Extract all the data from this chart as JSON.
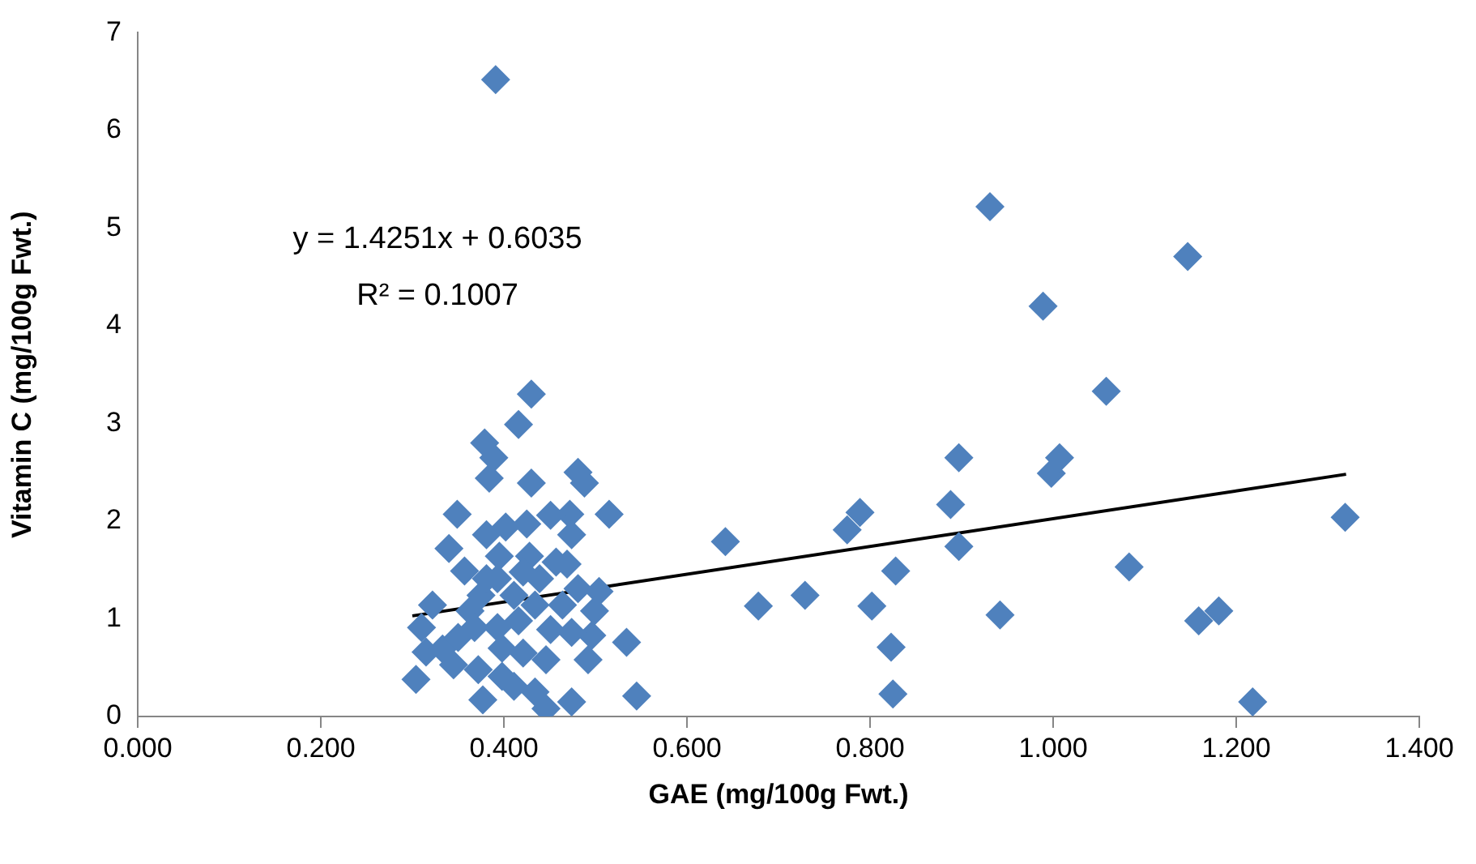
{
  "chart_data": {
    "type": "scatter",
    "xlabel": "GAE (mg/100g Fwt.)",
    "ylabel": "Vitamin C (mg/100g Fwt.)",
    "xlim": [
      0,
      1.4
    ],
    "ylim": [
      0,
      7
    ],
    "xticks": [
      {
        "value": 0,
        "label": "0.000"
      },
      {
        "value": 0.2,
        "label": "0.200"
      },
      {
        "value": 0.4,
        "label": "0.400"
      },
      {
        "value": 0.6,
        "label": "0.600"
      },
      {
        "value": 0.8,
        "label": "0.800"
      },
      {
        "value": 1.0,
        "label": "1.000"
      },
      {
        "value": 1.2,
        "label": "1.200"
      },
      {
        "value": 1.4,
        "label": "1.400"
      }
    ],
    "yticks": [
      0,
      1,
      2,
      3,
      4,
      5,
      6,
      7
    ],
    "grid": false,
    "legend": false,
    "annotations": [
      "y = 1.4251x + 0.6035",
      "R² = 0.1007"
    ],
    "series": [
      {
        "color": "#4f81bd",
        "marker": "diamond",
        "x": [
          0.391,
          0.642,
          0.678,
          0.729,
          0.775,
          0.789,
          0.802,
          0.828,
          0.823,
          0.825,
          0.888,
          0.897,
          0.897,
          0.931,
          0.942,
          0.989,
          0.998,
          1.007,
          1.058,
          1.083,
          1.147,
          1.159,
          1.181,
          1.218,
          1.319,
          0.43,
          0.416,
          0.379,
          0.389,
          0.481,
          0.488,
          0.43,
          0.384,
          0.349,
          0.515,
          0.472,
          0.451,
          0.474,
          0.34,
          0.381,
          0.402,
          0.425,
          0.357,
          0.469,
          0.428,
          0.395,
          0.322,
          0.504,
          0.534,
          0.545,
          0.304,
          0.315,
          0.333,
          0.377,
          0.446,
          0.474,
          0.492,
          0.496,
          0.31,
          0.372,
          0.411,
          0.434,
          0.451,
          0.393,
          0.421,
          0.464,
          0.411,
          0.375,
          0.439,
          0.481,
          0.363,
          0.398,
          0.35,
          0.434,
          0.393,
          0.368,
          0.416,
          0.474,
          0.345,
          0.446,
          0.398,
          0.499,
          0.421,
          0.457,
          0.381
        ],
        "values": [
          6.52,
          1.79,
          1.13,
          1.24,
          1.91,
          2.09,
          1.13,
          1.49,
          0.71,
          0.23,
          2.17,
          1.74,
          2.65,
          5.22,
          1.04,
          4.2,
          2.49,
          2.65,
          3.33,
          1.53,
          4.71,
          0.98,
          1.08,
          0.15,
          2.04,
          3.3,
          2.99,
          2.8,
          2.65,
          2.5,
          2.39,
          2.39,
          2.44,
          2.07,
          2.07,
          2.07,
          2.06,
          1.86,
          1.72,
          1.86,
          1.94,
          1.97,
          1.49,
          1.56,
          1.64,
          1.64,
          1.14,
          1.28,
          0.76,
          0.21,
          0.38,
          0.66,
          0.69,
          0.17,
          0.08,
          0.15,
          0.58,
          0.83,
          0.91,
          0.48,
          0.31,
          0.25,
          0.89,
          0.91,
          0.65,
          1.14,
          1.24,
          1.24,
          1.41,
          1.31,
          1.08,
          0.7,
          0.81,
          1.14,
          1.41,
          0.91,
          0.98,
          0.86,
          0.53,
          0.58,
          0.41,
          1.08,
          1.48,
          1.58,
          1.41
        ]
      },
      {
        "type": "line",
        "color": "#000000",
        "x": [
          0.3,
          1.32
        ],
        "values": [
          1.03,
          2.48
        ]
      }
    ]
  }
}
